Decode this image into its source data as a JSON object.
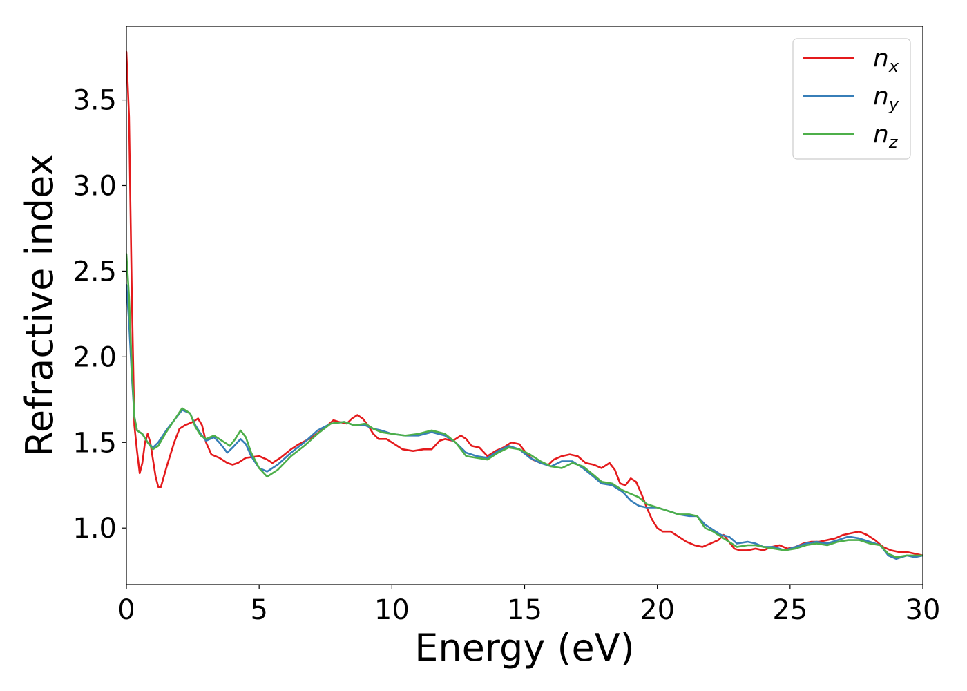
{
  "chart_data": {
    "type": "line",
    "title": "",
    "xlabel": "Energy (eV)",
    "ylabel": "Refractive index",
    "xlim": [
      0,
      30
    ],
    "ylim": [
      0.67,
      3.93
    ],
    "xticks": [
      0,
      5,
      10,
      15,
      20,
      25,
      30
    ],
    "xtick_labels": [
      "0",
      "5",
      "10",
      "15",
      "20",
      "25",
      "30"
    ],
    "yticks": [
      1.0,
      1.5,
      2.0,
      2.5,
      3.0,
      3.5
    ],
    "ytick_labels": [
      "1.0",
      "1.5",
      "2.0",
      "2.5",
      "3.0",
      "3.5"
    ],
    "grid": false,
    "legend_position": "top-right",
    "series": [
      {
        "name": "n_x",
        "label_main": "n",
        "label_sub": "x",
        "color": "#e41a1c",
        "points": [
          [
            0,
            3.78
          ],
          [
            0.1,
            3.4
          ],
          [
            0.2,
            2.4
          ],
          [
            0.3,
            1.6
          ],
          [
            0.4,
            1.45
          ],
          [
            0.5,
            1.32
          ],
          [
            0.6,
            1.38
          ],
          [
            0.7,
            1.5
          ],
          [
            0.8,
            1.55
          ],
          [
            0.9,
            1.5
          ],
          [
            1.0,
            1.4
          ],
          [
            1.1,
            1.3
          ],
          [
            1.2,
            1.24
          ],
          [
            1.3,
            1.24
          ],
          [
            1.5,
            1.35
          ],
          [
            1.8,
            1.5
          ],
          [
            2.0,
            1.58
          ],
          [
            2.2,
            1.6
          ],
          [
            2.5,
            1.62
          ],
          [
            2.7,
            1.64
          ],
          [
            2.85,
            1.6
          ],
          [
            3.0,
            1.5
          ],
          [
            3.2,
            1.43
          ],
          [
            3.5,
            1.41
          ],
          [
            3.8,
            1.38
          ],
          [
            4.0,
            1.37
          ],
          [
            4.2,
            1.38
          ],
          [
            4.5,
            1.41
          ],
          [
            5.0,
            1.42
          ],
          [
            5.3,
            1.4
          ],
          [
            5.5,
            1.38
          ],
          [
            5.8,
            1.41
          ],
          [
            6.2,
            1.46
          ],
          [
            6.5,
            1.49
          ],
          [
            7.0,
            1.53
          ],
          [
            7.5,
            1.59
          ],
          [
            7.8,
            1.63
          ],
          [
            8.0,
            1.62
          ],
          [
            8.3,
            1.61
          ],
          [
            8.5,
            1.64
          ],
          [
            8.7,
            1.66
          ],
          [
            8.9,
            1.64
          ],
          [
            9.1,
            1.6
          ],
          [
            9.3,
            1.55
          ],
          [
            9.5,
            1.52
          ],
          [
            9.8,
            1.52
          ],
          [
            10.1,
            1.49
          ],
          [
            10.4,
            1.46
          ],
          [
            10.8,
            1.45
          ],
          [
            11.2,
            1.46
          ],
          [
            11.5,
            1.46
          ],
          [
            11.8,
            1.51
          ],
          [
            12.0,
            1.52
          ],
          [
            12.3,
            1.51
          ],
          [
            12.6,
            1.54
          ],
          [
            12.8,
            1.52
          ],
          [
            13.0,
            1.48
          ],
          [
            13.3,
            1.47
          ],
          [
            13.6,
            1.42
          ],
          [
            13.9,
            1.45
          ],
          [
            14.2,
            1.47
          ],
          [
            14.5,
            1.5
          ],
          [
            14.8,
            1.49
          ],
          [
            15.0,
            1.45
          ],
          [
            15.3,
            1.4
          ],
          [
            15.6,
            1.38
          ],
          [
            15.9,
            1.37
          ],
          [
            16.1,
            1.4
          ],
          [
            16.4,
            1.42
          ],
          [
            16.7,
            1.43
          ],
          [
            17.0,
            1.42
          ],
          [
            17.3,
            1.38
          ],
          [
            17.6,
            1.37
          ],
          [
            17.9,
            1.35
          ],
          [
            18.2,
            1.38
          ],
          [
            18.4,
            1.34
          ],
          [
            18.6,
            1.26
          ],
          [
            18.8,
            1.25
          ],
          [
            19.0,
            1.29
          ],
          [
            19.2,
            1.27
          ],
          [
            19.4,
            1.2
          ],
          [
            19.6,
            1.12
          ],
          [
            19.8,
            1.05
          ],
          [
            20.0,
            1.0
          ],
          [
            20.2,
            0.98
          ],
          [
            20.5,
            0.98
          ],
          [
            20.8,
            0.95
          ],
          [
            21.1,
            0.92
          ],
          [
            21.4,
            0.9
          ],
          [
            21.7,
            0.89
          ],
          [
            22.0,
            0.91
          ],
          [
            22.3,
            0.93
          ],
          [
            22.5,
            0.96
          ],
          [
            22.7,
            0.92
          ],
          [
            22.9,
            0.88
          ],
          [
            23.1,
            0.87
          ],
          [
            23.4,
            0.87
          ],
          [
            23.7,
            0.88
          ],
          [
            24.0,
            0.87
          ],
          [
            24.3,
            0.89
          ],
          [
            24.6,
            0.9
          ],
          [
            24.9,
            0.88
          ],
          [
            25.2,
            0.89
          ],
          [
            25.5,
            0.91
          ],
          [
            25.8,
            0.92
          ],
          [
            26.1,
            0.92
          ],
          [
            26.4,
            0.93
          ],
          [
            26.7,
            0.94
          ],
          [
            27.0,
            0.96
          ],
          [
            27.3,
            0.97
          ],
          [
            27.6,
            0.98
          ],
          [
            27.9,
            0.96
          ],
          [
            28.2,
            0.93
          ],
          [
            28.5,
            0.89
          ],
          [
            28.8,
            0.87
          ],
          [
            29.1,
            0.86
          ],
          [
            29.4,
            0.86
          ],
          [
            29.7,
            0.85
          ],
          [
            30.0,
            0.84
          ]
        ]
      },
      {
        "name": "n_y",
        "label_main": "n",
        "label_sub": "y",
        "color": "#377eb8",
        "points": [
          [
            0,
            2.42
          ],
          [
            0.1,
            2.2
          ],
          [
            0.2,
            1.9
          ],
          [
            0.3,
            1.65
          ],
          [
            0.4,
            1.57
          ],
          [
            0.6,
            1.55
          ],
          [
            0.8,
            1.5
          ],
          [
            1.0,
            1.47
          ],
          [
            1.2,
            1.5
          ],
          [
            1.5,
            1.57
          ],
          [
            1.8,
            1.63
          ],
          [
            2.1,
            1.69
          ],
          [
            2.4,
            1.67
          ],
          [
            2.6,
            1.6
          ],
          [
            2.8,
            1.55
          ],
          [
            3.0,
            1.51
          ],
          [
            3.3,
            1.53
          ],
          [
            3.5,
            1.5
          ],
          [
            3.8,
            1.44
          ],
          [
            4.0,
            1.47
          ],
          [
            4.3,
            1.52
          ],
          [
            4.5,
            1.49
          ],
          [
            4.7,
            1.42
          ],
          [
            5.0,
            1.35
          ],
          [
            5.3,
            1.33
          ],
          [
            5.7,
            1.37
          ],
          [
            6.2,
            1.44
          ],
          [
            6.7,
            1.5
          ],
          [
            7.2,
            1.57
          ],
          [
            7.7,
            1.61
          ],
          [
            8.2,
            1.62
          ],
          [
            8.6,
            1.6
          ],
          [
            9.0,
            1.6
          ],
          [
            9.3,
            1.58
          ],
          [
            9.6,
            1.57
          ],
          [
            10.0,
            1.55
          ],
          [
            10.5,
            1.54
          ],
          [
            11.0,
            1.54
          ],
          [
            11.5,
            1.56
          ],
          [
            12.0,
            1.54
          ],
          [
            12.4,
            1.5
          ],
          [
            12.8,
            1.44
          ],
          [
            13.2,
            1.42
          ],
          [
            13.6,
            1.41
          ],
          [
            14.0,
            1.45
          ],
          [
            14.4,
            1.48
          ],
          [
            14.8,
            1.46
          ],
          [
            15.2,
            1.41
          ],
          [
            15.6,
            1.38
          ],
          [
            16.0,
            1.36
          ],
          [
            16.4,
            1.39
          ],
          [
            16.8,
            1.39
          ],
          [
            17.2,
            1.35
          ],
          [
            17.6,
            1.3
          ],
          [
            17.9,
            1.26
          ],
          [
            18.3,
            1.25
          ],
          [
            18.7,
            1.21
          ],
          [
            19.0,
            1.16
          ],
          [
            19.3,
            1.13
          ],
          [
            19.6,
            1.12
          ],
          [
            20.0,
            1.12
          ],
          [
            20.4,
            1.1
          ],
          [
            20.8,
            1.08
          ],
          [
            21.2,
            1.07
          ],
          [
            21.5,
            1.07
          ],
          [
            21.8,
            1.02
          ],
          [
            22.1,
            0.99
          ],
          [
            22.4,
            0.96
          ],
          [
            22.7,
            0.95
          ],
          [
            23.0,
            0.91
          ],
          [
            23.4,
            0.92
          ],
          [
            23.7,
            0.91
          ],
          [
            24.0,
            0.89
          ],
          [
            24.4,
            0.89
          ],
          [
            24.8,
            0.87
          ],
          [
            25.2,
            0.89
          ],
          [
            25.6,
            0.91
          ],
          [
            26.0,
            0.92
          ],
          [
            26.4,
            0.91
          ],
          [
            26.8,
            0.93
          ],
          [
            27.2,
            0.95
          ],
          [
            27.6,
            0.94
          ],
          [
            28.0,
            0.92
          ],
          [
            28.4,
            0.9
          ],
          [
            28.7,
            0.84
          ],
          [
            29.0,
            0.82
          ],
          [
            29.4,
            0.84
          ],
          [
            29.7,
            0.83
          ],
          [
            30.0,
            0.84
          ]
        ]
      },
      {
        "name": "n_z",
        "label_main": "n",
        "label_sub": "z",
        "color": "#4daf4a",
        "points": [
          [
            0,
            2.6
          ],
          [
            0.1,
            2.35
          ],
          [
            0.2,
            1.95
          ],
          [
            0.3,
            1.65
          ],
          [
            0.4,
            1.57
          ],
          [
            0.6,
            1.55
          ],
          [
            0.8,
            1.5
          ],
          [
            1.0,
            1.46
          ],
          [
            1.2,
            1.48
          ],
          [
            1.5,
            1.56
          ],
          [
            1.8,
            1.63
          ],
          [
            2.1,
            1.7
          ],
          [
            2.4,
            1.67
          ],
          [
            2.6,
            1.59
          ],
          [
            2.8,
            1.54
          ],
          [
            3.0,
            1.52
          ],
          [
            3.3,
            1.54
          ],
          [
            3.6,
            1.51
          ],
          [
            3.9,
            1.48
          ],
          [
            4.1,
            1.52
          ],
          [
            4.3,
            1.57
          ],
          [
            4.5,
            1.53
          ],
          [
            4.7,
            1.44
          ],
          [
            5.0,
            1.35
          ],
          [
            5.3,
            1.3
          ],
          [
            5.7,
            1.34
          ],
          [
            6.2,
            1.42
          ],
          [
            6.7,
            1.48
          ],
          [
            7.2,
            1.55
          ],
          [
            7.7,
            1.61
          ],
          [
            8.2,
            1.62
          ],
          [
            8.6,
            1.6
          ],
          [
            9.0,
            1.61
          ],
          [
            9.3,
            1.58
          ],
          [
            9.6,
            1.56
          ],
          [
            10.0,
            1.55
          ],
          [
            10.5,
            1.54
          ],
          [
            11.0,
            1.55
          ],
          [
            11.5,
            1.57
          ],
          [
            12.0,
            1.55
          ],
          [
            12.4,
            1.5
          ],
          [
            12.8,
            1.42
          ],
          [
            13.2,
            1.41
          ],
          [
            13.6,
            1.4
          ],
          [
            14.0,
            1.44
          ],
          [
            14.4,
            1.47
          ],
          [
            14.8,
            1.46
          ],
          [
            15.2,
            1.43
          ],
          [
            15.6,
            1.39
          ],
          [
            16.0,
            1.36
          ],
          [
            16.4,
            1.35
          ],
          [
            16.8,
            1.38
          ],
          [
            17.2,
            1.36
          ],
          [
            17.6,
            1.31
          ],
          [
            17.9,
            1.27
          ],
          [
            18.3,
            1.26
          ],
          [
            18.7,
            1.22
          ],
          [
            19.0,
            1.2
          ],
          [
            19.3,
            1.18
          ],
          [
            19.6,
            1.14
          ],
          [
            20.0,
            1.12
          ],
          [
            20.4,
            1.1
          ],
          [
            20.8,
            1.08
          ],
          [
            21.2,
            1.08
          ],
          [
            21.5,
            1.07
          ],
          [
            21.8,
            1.0
          ],
          [
            22.1,
            0.98
          ],
          [
            22.4,
            0.95
          ],
          [
            22.7,
            0.92
          ],
          [
            23.0,
            0.89
          ],
          [
            23.4,
            0.9
          ],
          [
            23.7,
            0.9
          ],
          [
            24.0,
            0.89
          ],
          [
            24.4,
            0.88
          ],
          [
            24.8,
            0.87
          ],
          [
            25.2,
            0.88
          ],
          [
            25.6,
            0.9
          ],
          [
            26.0,
            0.91
          ],
          [
            26.4,
            0.9
          ],
          [
            26.8,
            0.92
          ],
          [
            27.2,
            0.93
          ],
          [
            27.6,
            0.93
          ],
          [
            28.0,
            0.91
          ],
          [
            28.4,
            0.9
          ],
          [
            28.7,
            0.85
          ],
          [
            29.0,
            0.83
          ],
          [
            29.4,
            0.84
          ],
          [
            29.7,
            0.84
          ],
          [
            30.0,
            0.84
          ]
        ]
      }
    ]
  }
}
